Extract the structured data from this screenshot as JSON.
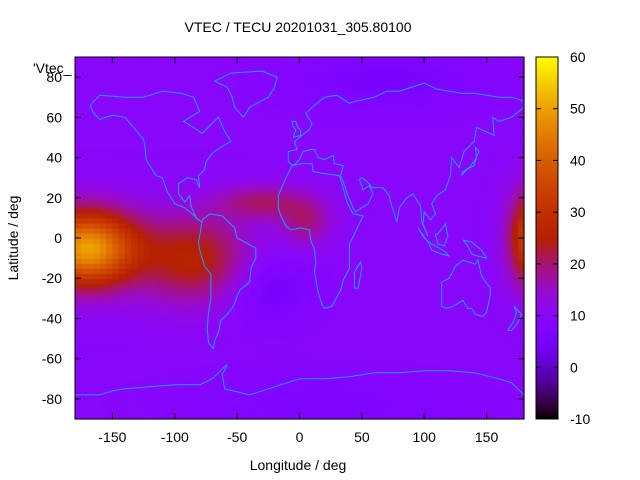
{
  "chart_data": {
    "type": "heatmap",
    "title": "VTEC / TECU 20201031_305.80100",
    "xlabel": "Longitude / deg",
    "ylabel": "Latitude / deg",
    "key_label": "'Vtec_",
    "xlim": [
      -180,
      180
    ],
    "ylim": [
      -90,
      90
    ],
    "x_ticks": [
      -150,
      -100,
      -50,
      0,
      50,
      100,
      150
    ],
    "y_ticks": [
      -80,
      -60,
      -40,
      -20,
      0,
      20,
      40,
      60,
      80
    ],
    "colorbar": {
      "range": [
        -10,
        60
      ],
      "ticks": [
        -10,
        0,
        10,
        20,
        30,
        40,
        50,
        60
      ],
      "palette": "gnuplot-rgbformulae-7-5-15"
    },
    "background_value": 10,
    "features": [
      {
        "name": "pacific-crest",
        "lon": -170,
        "lat": -5,
        "sigma_lon": 28,
        "sigma_lat": 13,
        "value": 40
      },
      {
        "name": "south-america-crest",
        "lon": -85,
        "lat": -10,
        "sigma_lon": 30,
        "sigma_lat": 15,
        "value": 16
      },
      {
        "name": "atlantic-band",
        "lon": -30,
        "lat": 18,
        "sigma_lon": 25,
        "sigma_lat": 6,
        "value": 10
      },
      {
        "name": "africa-bulge",
        "lon": 5,
        "lat": 8,
        "sigma_lon": 14,
        "sigma_lat": 8,
        "value": 9
      },
      {
        "name": "dateline-east-crest",
        "lon": 185,
        "lat": 0,
        "sigma_lon": 12,
        "sigma_lat": 16,
        "value": 25
      },
      {
        "name": "south-atlantic-low",
        "lon": -25,
        "lat": -25,
        "sigma_lon": 25,
        "sigma_lat": 12,
        "value": -5
      },
      {
        "name": "arctic-low",
        "lon": 70,
        "lat": 78,
        "sigma_lon": 60,
        "sigma_lat": 10,
        "value": -4
      },
      {
        "name": "antarctic-low",
        "lon": 20,
        "lat": -82,
        "sigma_lon": 80,
        "sigma_lat": 10,
        "value": -3
      }
    ],
    "coastline_color": "#1e9bff"
  }
}
